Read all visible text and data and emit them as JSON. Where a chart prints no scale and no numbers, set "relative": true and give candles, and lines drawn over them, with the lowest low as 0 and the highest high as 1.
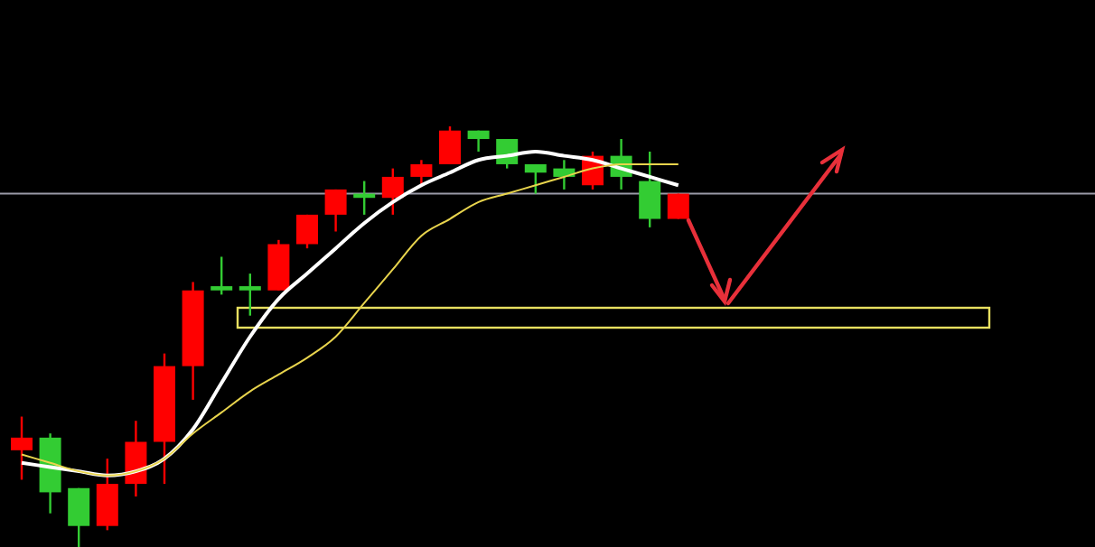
{
  "chart_data": {
    "type": "candlestick",
    "relative": true,
    "categories": [
      null,
      null,
      null,
      null,
      null,
      null,
      null,
      null,
      null,
      null,
      null,
      null,
      null,
      null,
      null,
      null,
      null,
      null,
      null,
      null,
      null,
      null,
      null,
      null,
      null,
      null,
      null,
      null,
      null,
      null,
      null,
      null,
      null,
      null,
      null,
      null,
      null,
      null
    ],
    "ohlc": [
      [
        0.23,
        0.31,
        0.16,
        0.26
      ],
      [
        0.26,
        0.27,
        0.08,
        0.13
      ],
      [
        0.14,
        0.14,
        0,
        0.05
      ],
      [
        0.05,
        0.21,
        0.04,
        0.15
      ],
      [
        0.15,
        0.3,
        0.12,
        0.25
      ],
      [
        0.25,
        0.46,
        0.15,
        0.43
      ],
      [
        0.43,
        0.63,
        0.35,
        0.61
      ],
      [
        0.62,
        0.69,
        0.6,
        0.61
      ],
      [
        0.62,
        0.65,
        0.55,
        0.61
      ],
      [
        0.61,
        0.73,
        0.61,
        0.72
      ],
      [
        0.72,
        0.79,
        0.71,
        0.79
      ],
      [
        0.79,
        0.85,
        0.75,
        0.85
      ],
      [
        0.84,
        0.87,
        0.79,
        0.83
      ],
      [
        0.83,
        0.9,
        0.79,
        0.88
      ],
      [
        0.88,
        0.92,
        0.86,
        0.91
      ],
      [
        0.91,
        1,
        0.91,
        0.99
      ],
      [
        0.99,
        0.99,
        0.94,
        0.97
      ],
      [
        0.97,
        0.97,
        0.9,
        0.91
      ],
      [
        0.91,
        0.91,
        0.84,
        0.89
      ],
      [
        0.9,
        0.92,
        0.85,
        0.88
      ],
      [
        0.86,
        0.94,
        0.85,
        0.93
      ],
      [
        0.93,
        0.97,
        0.85,
        0.88
      ],
      [
        0.87,
        0.94,
        0.76,
        0.78
      ],
      [
        0.78,
        0.84,
        0.78,
        0.84
      ],
      null,
      null,
      null,
      null,
      null,
      null,
      null,
      null,
      null,
      null,
      null,
      null,
      null,
      null
    ],
    "colors": [
      "#ff0000",
      "#33cc33",
      "#33cc33",
      "#ff0000",
      "#ff0000",
      "#ff0000",
      "#ff0000",
      "#33cc33",
      "#33cc33",
      "#ff0000",
      "#ff0000",
      "#ff0000",
      "#33cc33",
      "#ff0000",
      "#ff0000",
      "#ff0000",
      "#33cc33",
      "#33cc33",
      "#33cc33",
      "#33cc33",
      "#ff0000",
      "#33cc33",
      "#33cc33",
      "#ff0000",
      null,
      null,
      null,
      null,
      null,
      null,
      null,
      null,
      null,
      null,
      null,
      null,
      null,
      null
    ],
    "series": [
      {
        "type": "line",
        "color": "#ffffff",
        "values": [
          0.2,
          0.19,
          0.18,
          0.17,
          0.18,
          0.21,
          0.28,
          0.39,
          0.5,
          0.59,
          0.65,
          0.71,
          0.77,
          0.82,
          0.86,
          0.89,
          0.92,
          0.93,
          0.94,
          0.93,
          0.92,
          0.9,
          0.88,
          0.86,
          null,
          null,
          null,
          null,
          null,
          null,
          null,
          null,
          null,
          null,
          null,
          null,
          null,
          null
        ]
      },
      {
        "type": "line",
        "color": "#e8d44d",
        "values": [
          0.22,
          0.2,
          0.18,
          0.17,
          0.18,
          0.21,
          0.27,
          0.32,
          0.37,
          0.41,
          0.45,
          0.5,
          0.58,
          0.66,
          0.74,
          0.78,
          0.82,
          0.84,
          0.86,
          0.88,
          0.9,
          0.91,
          0.91,
          0.91,
          null,
          null,
          null,
          null,
          null,
          null,
          null,
          null,
          null,
          null,
          null,
          null,
          null,
          null
        ]
      }
    ],
    "ref_lines": [
      {
        "axis": "y",
        "value": 0.84,
        "color": "#9a9aa8"
      }
    ]
  }
}
